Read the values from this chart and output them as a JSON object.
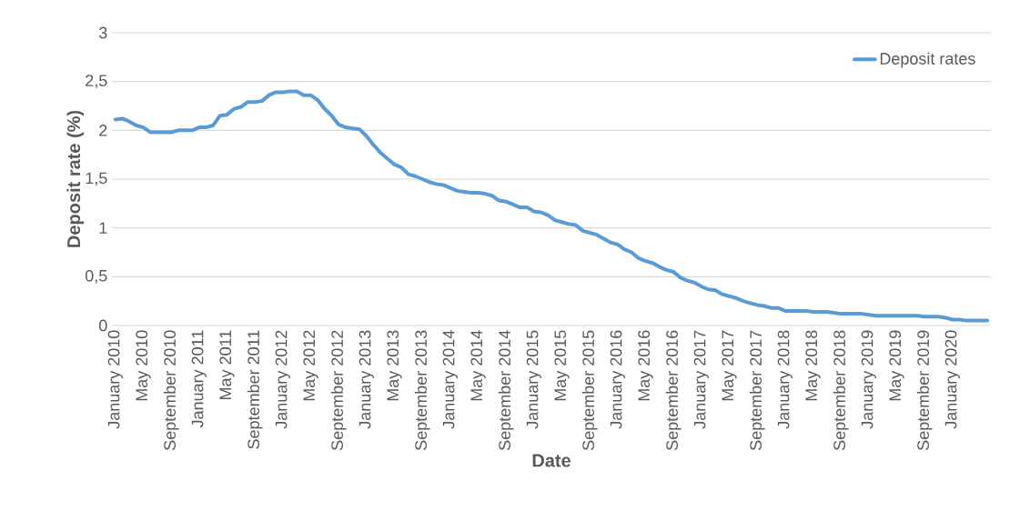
{
  "chart_data": {
    "type": "line",
    "xlabel": "Date",
    "ylabel": "Deposit rate (%)",
    "categories": [
      "January 2010",
      null,
      null,
      null,
      "May 2010",
      null,
      null,
      null,
      "September 2010",
      null,
      null,
      null,
      "January 2011",
      null,
      null,
      null,
      "May 2011",
      null,
      null,
      null,
      "September 2011",
      null,
      null,
      null,
      "January 2012",
      null,
      null,
      null,
      "May 2012",
      null,
      null,
      null,
      "September 2012",
      null,
      null,
      null,
      "January 2013",
      null,
      null,
      null,
      "May 2013",
      null,
      null,
      null,
      "September 2013",
      null,
      null,
      null,
      "January 2014",
      null,
      null,
      null,
      "May 2014",
      null,
      null,
      null,
      "September 2014",
      null,
      null,
      null,
      "January 2015",
      null,
      null,
      null,
      "May 2015",
      null,
      null,
      null,
      "September 2015",
      null,
      null,
      null,
      "January 2016",
      null,
      null,
      null,
      "May 2016",
      null,
      null,
      null,
      "September 2016",
      null,
      null,
      null,
      "January 2017",
      null,
      null,
      null,
      "May 2017",
      null,
      null,
      null,
      "September 2017",
      null,
      null,
      null,
      "January 2018",
      null,
      null,
      null,
      "May 2018",
      null,
      null,
      null,
      "September 2018",
      null,
      null,
      null,
      "January 2019",
      null,
      null,
      null,
      "May 2019",
      null,
      null,
      null,
      "September 2019",
      null,
      null,
      null,
      "January 2020",
      null,
      null,
      null,
      null,
      null
    ],
    "series": [
      {
        "name": "Deposit rates",
        "color": "#5b9bd5",
        "values": [
          2.11,
          2.12,
          2.09,
          2.05,
          2.03,
          1.98,
          1.98,
          1.98,
          1.98,
          2.0,
          2.0,
          2.0,
          2.03,
          2.03,
          2.05,
          2.15,
          2.16,
          2.22,
          2.24,
          2.29,
          2.29,
          2.3,
          2.36,
          2.39,
          2.39,
          2.4,
          2.4,
          2.36,
          2.36,
          2.31,
          2.22,
          2.15,
          2.06,
          2.03,
          2.02,
          2.01,
          1.94,
          1.85,
          1.77,
          1.71,
          1.65,
          1.62,
          1.55,
          1.53,
          1.5,
          1.47,
          1.45,
          1.44,
          1.41,
          1.38,
          1.37,
          1.36,
          1.36,
          1.35,
          1.33,
          1.28,
          1.27,
          1.24,
          1.21,
          1.21,
          1.17,
          1.16,
          1.13,
          1.08,
          1.06,
          1.04,
          1.03,
          0.97,
          0.95,
          0.93,
          0.89,
          0.85,
          0.83,
          0.78,
          0.75,
          0.69,
          0.66,
          0.64,
          0.6,
          0.57,
          0.55,
          0.49,
          0.46,
          0.44,
          0.4,
          0.37,
          0.36,
          0.32,
          0.3,
          0.28,
          0.25,
          0.23,
          0.21,
          0.2,
          0.18,
          0.18,
          0.15,
          0.15,
          0.15,
          0.15,
          0.14,
          0.14,
          0.14,
          0.13,
          0.12,
          0.12,
          0.12,
          0.12,
          0.11,
          0.1,
          0.1,
          0.1,
          0.1,
          0.1,
          0.1,
          0.1,
          0.09,
          0.09,
          0.09,
          0.08,
          0.06,
          0.06,
          0.05,
          0.05,
          0.05,
          0.05
        ]
      }
    ],
    "ylim": [
      0,
      3
    ],
    "yticks": [
      0,
      {
        "value": 0.5,
        "label": "0,5"
      },
      1,
      {
        "value": 1.5,
        "label": "1,5"
      },
      2,
      {
        "value": 2.5,
        "label": "2,5"
      },
      3
    ],
    "grid": "y",
    "legend": "top right",
    "marker": "none",
    "line_style": "solid"
  }
}
